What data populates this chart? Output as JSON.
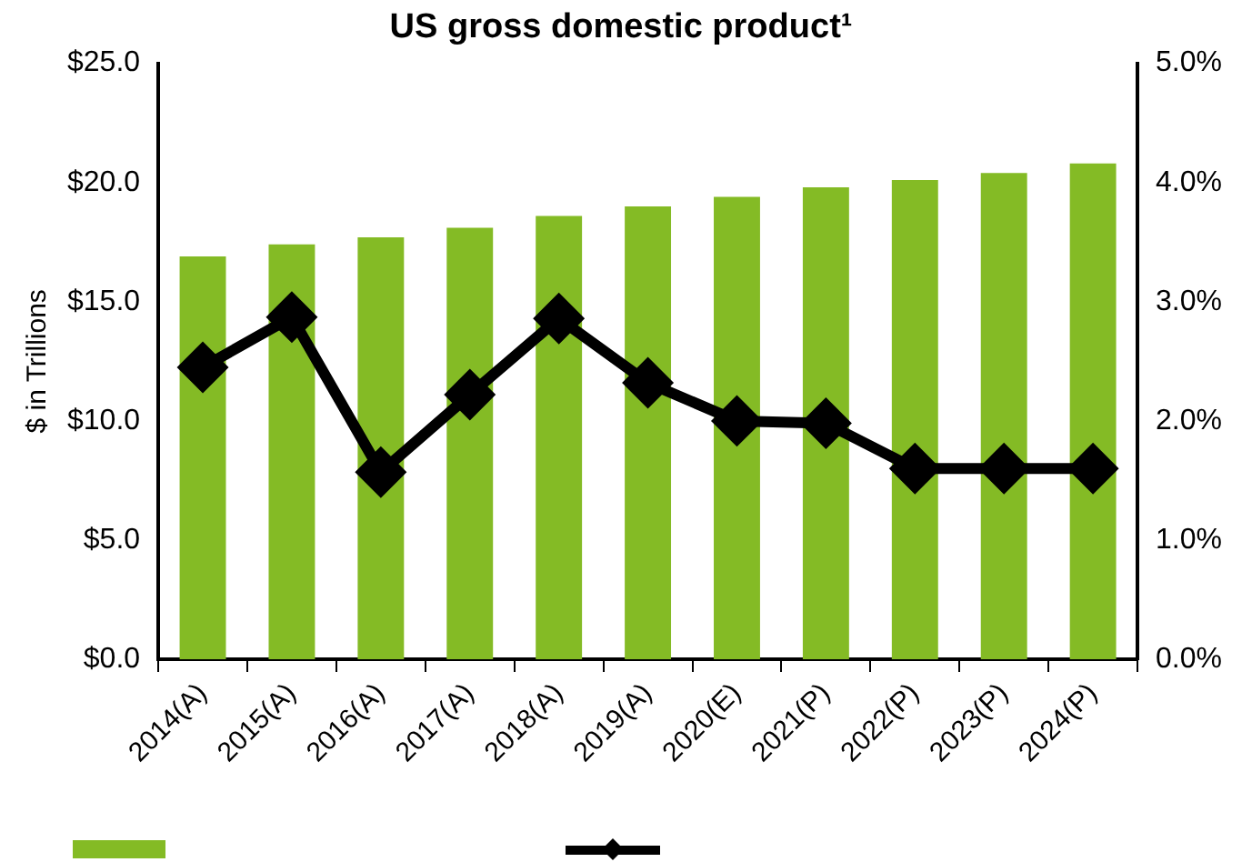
{
  "chart_data": {
    "type": "bar",
    "title": "US gross domestic product¹",
    "ylabel": "$ in Trillions",
    "categories": [
      "2014(A)",
      "2015(A)",
      "2016(A)",
      "2017(A)",
      "2018(A)",
      "2019(A)",
      "2020(E)",
      "2021(P)",
      "2022(P)",
      "2023(P)",
      "2024(P)"
    ],
    "series": [
      {
        "color": "#84bb25",
        "values": [
          16.9,
          17.4,
          17.7,
          18.1,
          18.6,
          19.0,
          19.4,
          19.8,
          20.1,
          20.4,
          20.8
        ]
      },
      {
        "type": "line",
        "axis": "y2",
        "color": "#000000",
        "marker": "diamond",
        "values": [
          2.45,
          2.87,
          1.57,
          2.22,
          2.86,
          2.32,
          2.0,
          1.98,
          1.6,
          1.6,
          1.6
        ]
      }
    ],
    "ylim": [
      0,
      25
    ],
    "yticks": [
      {
        "value": 0,
        "label": "$0.0"
      },
      {
        "value": 5,
        "label": "$5.0"
      },
      {
        "value": 10,
        "label": "$10.0"
      },
      {
        "value": 15,
        "label": "$15.0"
      },
      {
        "value": 20,
        "label": "$20.0"
      },
      {
        "value": 25,
        "label": "$25.0"
      }
    ],
    "y2lim": [
      0,
      5
    ],
    "y2ticks": [
      {
        "value": 0,
        "label": "0.0%"
      },
      {
        "value": 1,
        "label": "1.0%"
      },
      {
        "value": 2,
        "label": "2.0%"
      },
      {
        "value": 3,
        "label": "3.0%"
      },
      {
        "value": 4,
        "label": "4.0%"
      },
      {
        "value": 5,
        "label": "5.0%"
      }
    ],
    "grid": false
  }
}
